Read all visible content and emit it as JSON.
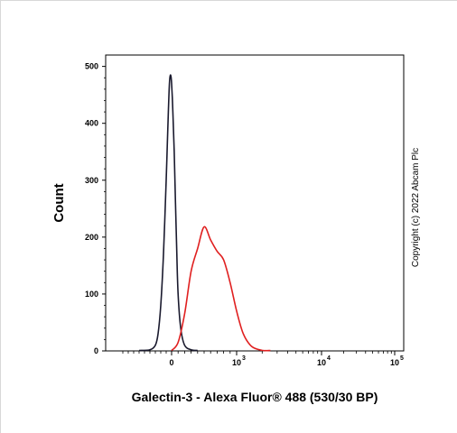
{
  "chart_data": {
    "type": "line",
    "title": "",
    "xlabel": "Galectin-3 - Alexa Fluor® 488 (530/30 BP)",
    "ylabel": "Count",
    "x_scale": "biexponential",
    "xlim": [
      -1000,
      100000
    ],
    "ylim": [
      0,
      520
    ],
    "x_ticks": [
      {
        "value": 0,
        "label": "0"
      },
      {
        "value": 1000,
        "label": "10",
        "exp": "3"
      },
      {
        "value": 10000,
        "label": "10",
        "exp": "4"
      },
      {
        "value": 100000,
        "label": "10",
        "exp": "5"
      }
    ],
    "y_ticks": [
      0,
      100,
      200,
      300,
      400,
      500
    ],
    "grid": false,
    "series": [
      {
        "color": "#1a1a2e",
        "x": [
          -600,
          -400,
          -300,
          -250,
          -200,
          -150,
          -100,
          -80,
          -60,
          -40,
          -20,
          0,
          20,
          40,
          60,
          80,
          100,
          140,
          200,
          300,
          400
        ],
        "y": [
          0,
          2,
          10,
          30,
          80,
          170,
          300,
          360,
          420,
          470,
          485,
          470,
          420,
          350,
          260,
          170,
          100,
          40,
          10,
          2,
          0
        ]
      },
      {
        "color": "#e02020",
        "x": [
          0,
          100,
          200,
          300,
          400,
          500,
          600,
          700,
          800,
          900,
          1000,
          1200,
          1500,
          2000,
          2500
        ],
        "y": [
          0,
          15,
          65,
          140,
          180,
          218,
          195,
          175,
          160,
          120,
          70,
          30,
          8,
          1,
          0
        ]
      }
    ],
    "annotations": [
      "Copyright (c) 2022 Abcam Plc"
    ]
  }
}
